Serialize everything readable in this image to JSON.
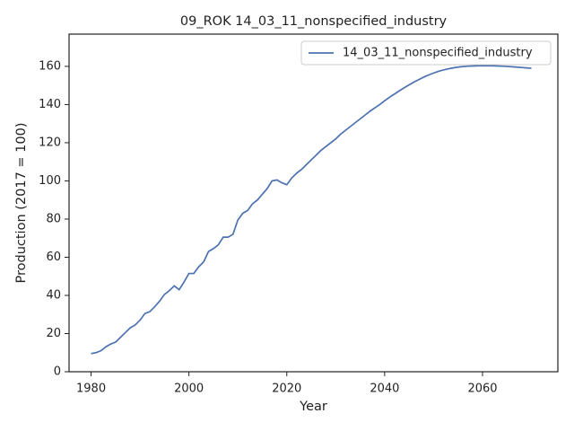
{
  "chart_data": {
    "type": "line",
    "title": "09_ROK 14_03_11_nonspecified_industry",
    "x_label": "Year",
    "y_label": "Production (2017 = 100)",
    "x": [
      1980,
      1981,
      1982,
      1983,
      1984,
      1985,
      1986,
      1987,
      1988,
      1989,
      1990,
      1991,
      1992,
      1993,
      1994,
      1995,
      1996,
      1997,
      1998,
      1999,
      2000,
      2001,
      2002,
      2003,
      2004,
      2005,
      2006,
      2007,
      2008,
      2009,
      2010,
      2011,
      2012,
      2013,
      2014,
      2015,
      2016,
      2017,
      2018,
      2019,
      2020,
      2021,
      2022,
      2023,
      2024,
      2025,
      2026,
      2027,
      2028,
      2029,
      2030,
      2031,
      2032,
      2033,
      2034,
      2035,
      2036,
      2037,
      2038,
      2039,
      2040,
      2041,
      2042,
      2043,
      2044,
      2045,
      2046,
      2047,
      2048,
      2049,
      2050,
      2051,
      2052,
      2053,
      2054,
      2055,
      2056,
      2057,
      2058,
      2059,
      2060,
      2061,
      2062,
      2063,
      2064,
      2065,
      2066,
      2067,
      2068,
      2069,
      2070
    ],
    "series": [
      {
        "name": "14_03_11_nonspecified_industry",
        "color": "#4c72b0",
        "values": [
          9.5,
          10,
          11,
          13,
          14.5,
          15.5,
          18,
          20.5,
          23,
          24.5,
          27,
          30.5,
          31.5,
          34,
          37,
          40.5,
          42.5,
          45,
          43,
          47,
          51.5,
          51.5,
          55,
          57.5,
          63,
          64.5,
          66.5,
          70.5,
          70.5,
          72,
          79.5,
          83,
          84.5,
          88,
          90,
          93,
          96,
          100,
          100.5,
          99,
          98,
          101.5,
          104,
          106,
          108.5,
          111,
          113.5,
          116,
          118,
          120,
          122,
          124.5,
          126.5,
          128.5,
          130.5,
          132.5,
          134.5,
          136.5,
          138.3,
          140,
          142,
          143.8,
          145.5,
          147.2,
          148.8,
          150.3,
          151.8,
          153.1,
          154.4,
          155.5,
          156.5,
          157.4,
          158.1,
          158.7,
          159.2,
          159.6,
          159.9,
          160.1,
          160.2,
          160.3,
          160.3,
          160.3,
          160.3,
          160.2,
          160.1,
          160,
          159.8,
          159.6,
          159.4,
          159.2,
          159
        ]
      }
    ],
    "xlim": [
      1975.5,
      2075.4
    ],
    "ylim": [
      0,
      176.9
    ],
    "xticks": [
      1980,
      2000,
      2020,
      2040,
      2060
    ],
    "yticks": [
      0,
      20,
      40,
      60,
      80,
      100,
      120,
      140,
      160
    ],
    "legend": "upper right"
  }
}
